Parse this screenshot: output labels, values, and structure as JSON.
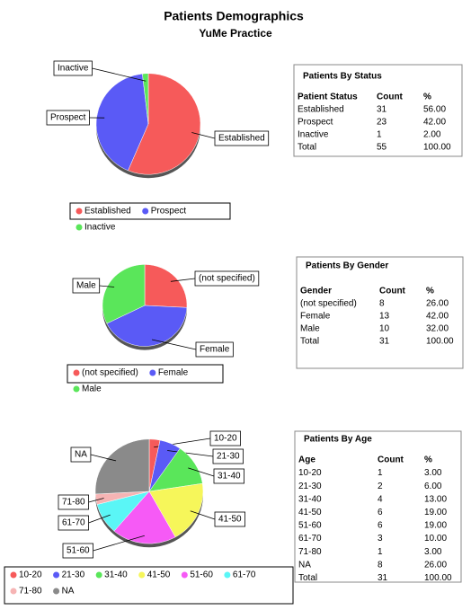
{
  "header": {
    "title": "Patients Demographics",
    "subtitle": "YuMe Practice"
  },
  "chart_data": [
    {
      "type": "pie",
      "categories": [
        "Established",
        "Prospect",
        "Inactive"
      ],
      "values": [
        31,
        23,
        1
      ],
      "colors": [
        "#f65a5a",
        "#5a5af6",
        "#5ae65a"
      ]
    },
    {
      "type": "pie",
      "categories": [
        "(not specified)",
        "Female",
        "Male"
      ],
      "values": [
        8,
        13,
        10
      ],
      "colors": [
        "#f65a5a",
        "#5a5af6",
        "#5ae65a"
      ]
    },
    {
      "type": "pie",
      "categories": [
        "10-20",
        "21-30",
        "31-40",
        "41-50",
        "51-60",
        "61-70",
        "71-80",
        "NA"
      ],
      "values": [
        1,
        2,
        4,
        6,
        6,
        3,
        1,
        8
      ],
      "colors": [
        "#f65a5a",
        "#5a5af6",
        "#5ae65a",
        "#f6f65a",
        "#f65af6",
        "#5af6f6",
        "#f6b4b4",
        "#8a8a8a"
      ]
    }
  ],
  "tables": [
    {
      "title": "Patients By Status",
      "columns": [
        "Patient Status",
        "Count",
        "%"
      ],
      "rows": [
        [
          "Established",
          "31",
          "56.00"
        ],
        [
          "Prospect",
          "23",
          "42.00"
        ],
        [
          "Inactive",
          "1",
          "2.00"
        ],
        [
          "Total",
          "55",
          "100.00"
        ]
      ]
    },
    {
      "title": "Patients By Gender",
      "columns": [
        "Gender",
        "Count",
        "%"
      ],
      "rows": [
        [
          "(not specified)",
          "8",
          "26.00"
        ],
        [
          "Female",
          "13",
          "42.00"
        ],
        [
          "Male",
          "10",
          "32.00"
        ],
        [
          "Total",
          "31",
          "100.00"
        ]
      ]
    },
    {
      "title": "Patients By Age",
      "columns": [
        "Age",
        "Count",
        "%"
      ],
      "rows": [
        [
          "10-20",
          "1",
          "3.00"
        ],
        [
          "21-30",
          "2",
          "6.00"
        ],
        [
          "31-40",
          "4",
          "13.00"
        ],
        [
          "41-50",
          "6",
          "19.00"
        ],
        [
          "51-60",
          "6",
          "19.00"
        ],
        [
          "61-70",
          "3",
          "10.00"
        ],
        [
          "71-80",
          "1",
          "3.00"
        ],
        [
          "NA",
          "8",
          "26.00"
        ],
        [
          "Total",
          "31",
          "100.00"
        ]
      ]
    }
  ]
}
